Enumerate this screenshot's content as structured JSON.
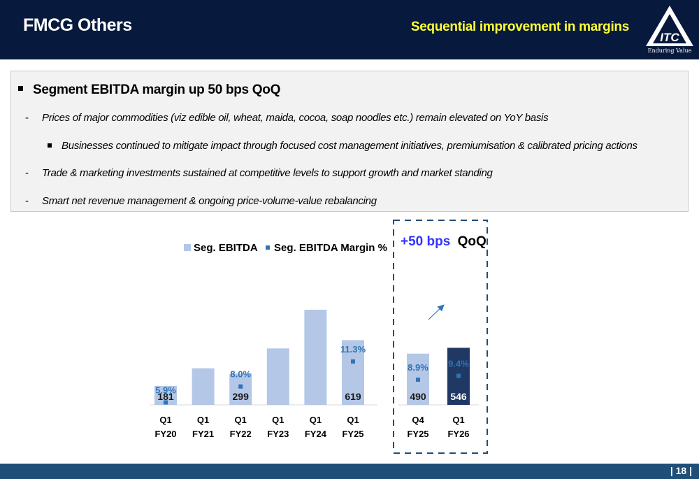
{
  "header": {
    "title": "FMCG Others",
    "subtitle": "Sequential improvement in margins",
    "logo_text": "ITC",
    "logo_tagline": "Enduring Value"
  },
  "info": {
    "headline": "Segment EBITDA margin up 50 bps QoQ",
    "lines": [
      {
        "marker": "-",
        "text": "Prices of major commodities (viz edible oil, wheat, maida, cocoa, soap noodles etc.) remain elevated on YoY basis"
      },
      {
        "marker": "square",
        "text": "Businesses continued to mitigate impact through focused cost management initiatives, premiumisation & calibrated pricing actions"
      },
      {
        "marker": "-",
        "text": "Trade & marketing investments sustained at competitive levels to support growth and market standing"
      },
      {
        "marker": "-",
        "text": "Smart net revenue management & ongoing price-volume-value rebalancing"
      }
    ]
  },
  "chart_data": {
    "type": "bar",
    "legend": [
      {
        "name": "Seg. EBITDA",
        "color": "#b4c7e7"
      },
      {
        "name": "Seg. EBITDA Margin %",
        "color": "#2e75b6"
      }
    ],
    "annual": {
      "categories": [
        [
          "Q1",
          "FY20"
        ],
        [
          "Q1",
          "FY21"
        ],
        [
          "Q1",
          "FY22"
        ],
        [
          "Q1",
          "FY23"
        ],
        [
          "Q1",
          "FY24"
        ],
        [
          "Q1",
          "FY25"
        ]
      ],
      "values": [
        181,
        350,
        299,
        540,
        910,
        619
      ],
      "value_labels": [
        "181",
        "",
        "299",
        "",
        "",
        "619"
      ],
      "margins": [
        5.9,
        null,
        8.0,
        null,
        null,
        11.3
      ],
      "margin_labels": [
        "5.9%",
        "",
        "8.0%",
        "",
        "",
        "11.3%"
      ]
    },
    "quarterly": {
      "categories": [
        [
          "Q4",
          "FY25"
        ],
        [
          "Q1",
          "FY26"
        ]
      ],
      "values": [
        490,
        546
      ],
      "value_labels": [
        "490",
        "546"
      ],
      "margins": [
        8.9,
        9.4
      ],
      "margin_labels": [
        "8.9%",
        "9.4%"
      ],
      "colors": [
        "#b4c7e7",
        "#203864"
      ]
    },
    "callout": {
      "highlight": "+50 bps",
      "suffix": "QoQ",
      "highlight_color": "#3333ff"
    }
  },
  "footer": {
    "page": "| 18 |"
  }
}
